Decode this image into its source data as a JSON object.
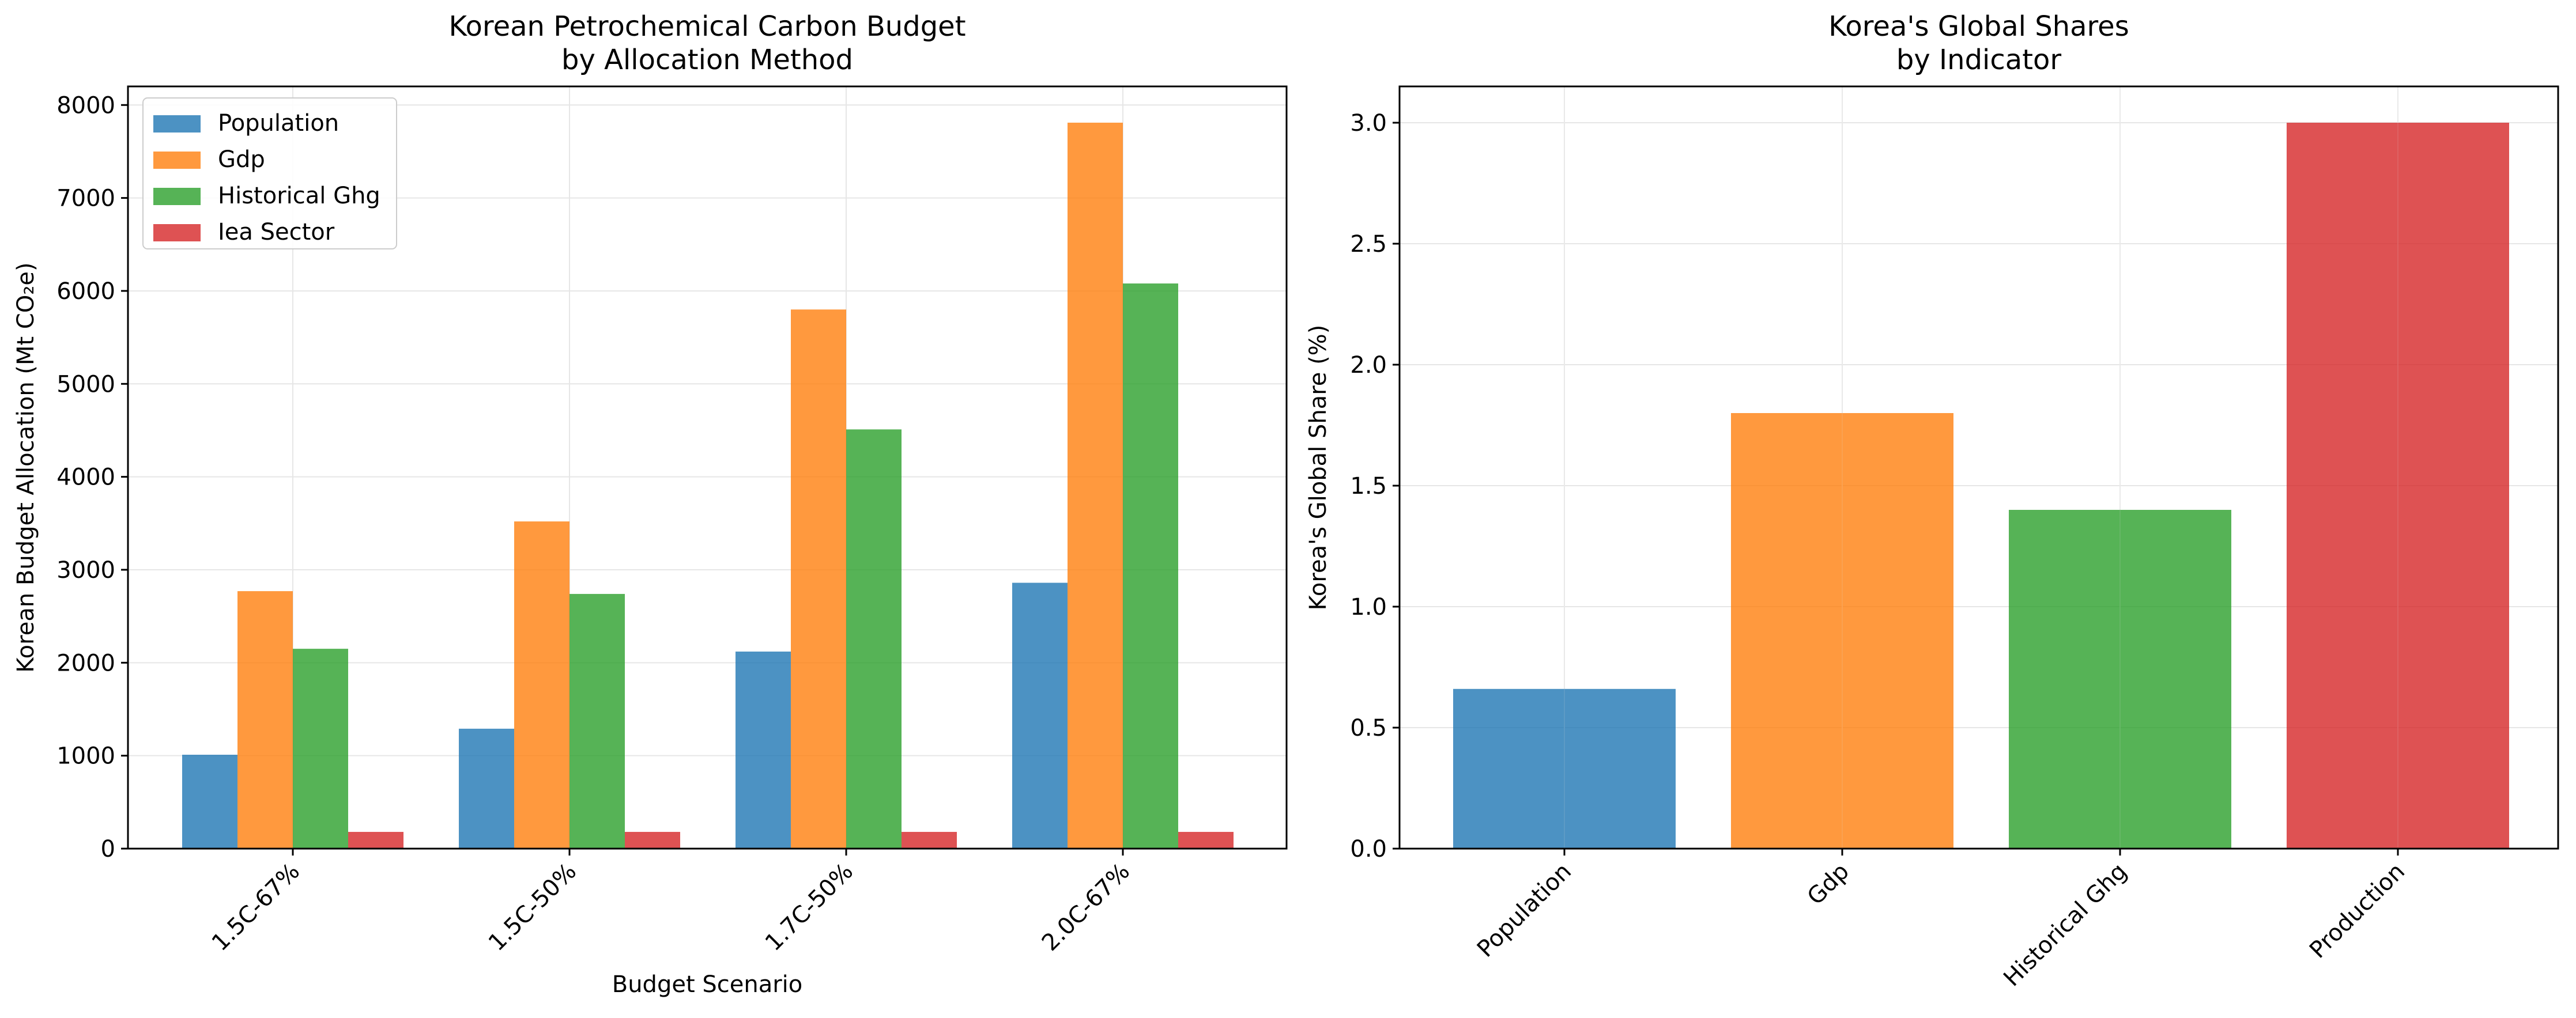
{
  "chart_data": [
    {
      "type": "bar",
      "title": "Korean Petrochemical Carbon Budget\nby Allocation Method",
      "xlabel": "Budget Scenario",
      "ylabel": "Korean Budget Allocation (Mt CO₂e)",
      "categories": [
        "1.5C-67%",
        "1.5C-50%",
        "1.7C-50%",
        "2.0C-67%"
      ],
      "series": [
        {
          "name": "Population",
          "color": "#1f77b4",
          "values": [
            1010,
            1290,
            2120,
            2860
          ]
        },
        {
          "name": "Gdp",
          "color": "#ff7f0e",
          "values": [
            2770,
            3520,
            5800,
            7810
          ]
        },
        {
          "name": "Historical Ghg",
          "color": "#2ca02c",
          "values": [
            2150,
            2740,
            4510,
            6080
          ]
        },
        {
          "name": "Iea Sector",
          "color": "#d62728",
          "values": [
            180,
            180,
            180,
            180
          ]
        }
      ],
      "ylim": [
        0,
        8200
      ],
      "yticks": [
        0,
        1000,
        2000,
        3000,
        4000,
        5000,
        6000,
        7000,
        8000
      ],
      "grid": true,
      "legend": "top-left"
    },
    {
      "type": "bar",
      "title": "Korea's Global Shares\nby Indicator",
      "xlabel": "",
      "ylabel": "Korea's Global Share (%)",
      "categories": [
        "Population",
        "Gdp",
        "Historical Ghg",
        "Production"
      ],
      "colors": [
        "#1f77b4",
        "#ff7f0e",
        "#2ca02c",
        "#d62728"
      ],
      "values": [
        0.66,
        1.8,
        1.4,
        3.0
      ],
      "ylim": [
        0,
        3.15
      ],
      "yticks": [
        0.0,
        0.5,
        1.0,
        1.5,
        2.0,
        2.5,
        3.0
      ],
      "ytick_labels": [
        "0.0",
        "0.5",
        "1.0",
        "1.5",
        "2.0",
        "2.5",
        "3.0"
      ],
      "grid": true
    }
  ]
}
